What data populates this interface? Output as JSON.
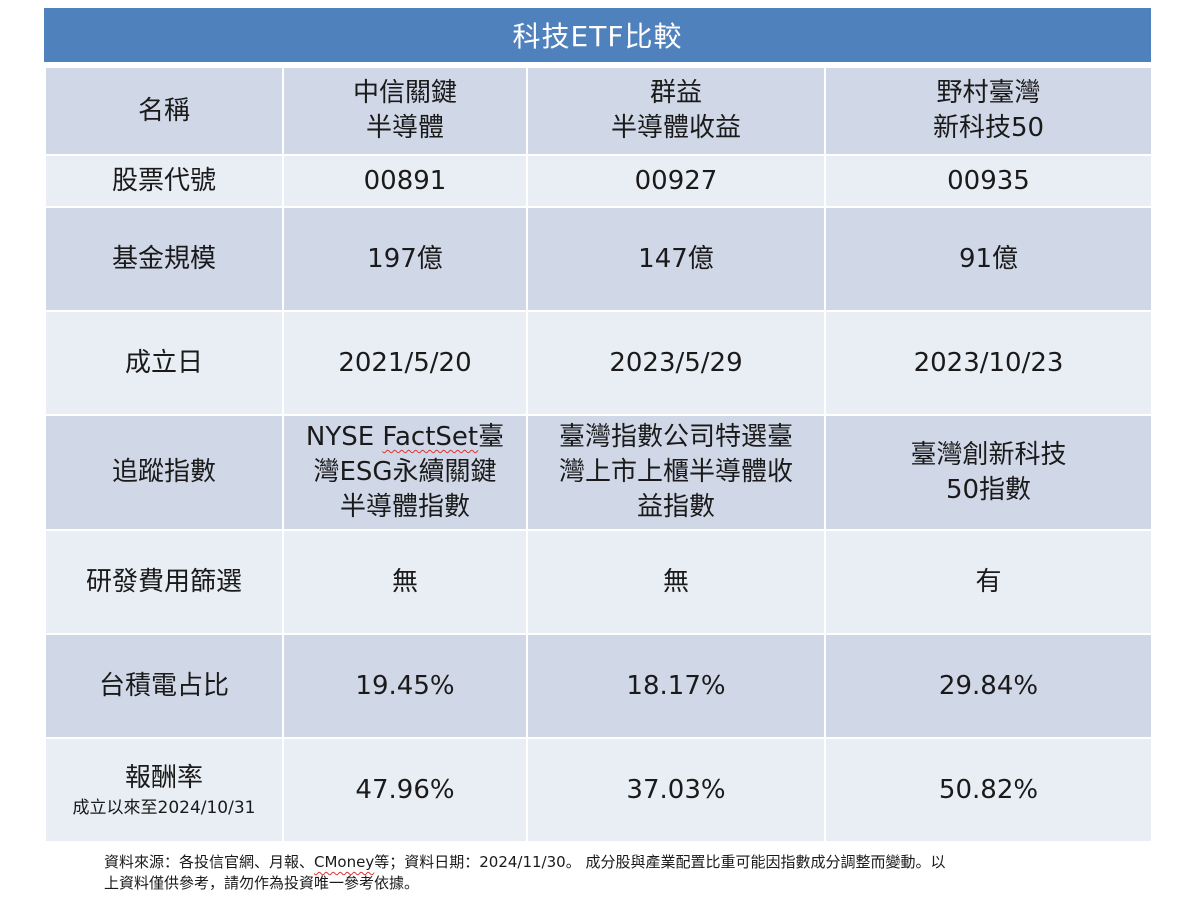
{
  "title": "科技ETF比較",
  "header": {
    "label": "名稱",
    "funds": [
      {
        "line1": "中信關鍵",
        "line2": "半導體"
      },
      {
        "line1": "群益",
        "line2": "半導體收益"
      },
      {
        "line1": "野村臺灣",
        "line2": "新科技50"
      }
    ]
  },
  "rows": {
    "code": {
      "label": "股票代號",
      "values": [
        "00891",
        "00927",
        "00935"
      ]
    },
    "size": {
      "label": "基金規模",
      "values": [
        "197億",
        "147億",
        "91億"
      ]
    },
    "inception": {
      "label": "成立日",
      "values": [
        "2021/5/20",
        "2023/5/29",
        "2023/10/23"
      ]
    },
    "index": {
      "label": "追蹤指數",
      "values": [
        {
          "pre": "NYSE ",
          "wavy": "FactSet",
          "line1_rest": "臺",
          "line2": "灣ESG永續關鍵",
          "line3": "半導體指數"
        },
        {
          "line1": "臺灣指數公司特選臺",
          "line2": "灣上市上櫃半導體收",
          "line3": "益指數"
        },
        {
          "line1": "臺灣創新科技",
          "line2": "50指數"
        }
      ]
    },
    "rd_screen": {
      "label": "研發費用篩選",
      "values": [
        "無",
        "無",
        "有"
      ]
    },
    "tsmc_weight": {
      "label": "台積電占比",
      "values": [
        "19.45%",
        "18.17%",
        "29.84%"
      ]
    },
    "return": {
      "label": "報酬率",
      "sublabel": "成立以來至2024/10/31",
      "values": [
        "47.96%",
        "37.03%",
        "50.82%"
      ]
    }
  },
  "footnote": {
    "part1": "資料來源：各投信官網、月報、",
    "cmoney": "CMoney",
    "part2": "等；資料日期：2024/11/30。 成分股與產業配置比重可能因指數成分調整而變動。以",
    "line2": "上資料僅供參考，請勿作為投資唯一參考依據。"
  },
  "colors": {
    "title_bg": "#4f81bd",
    "band_dark": "#d0d8e8",
    "band_light": "#e9edf4"
  }
}
